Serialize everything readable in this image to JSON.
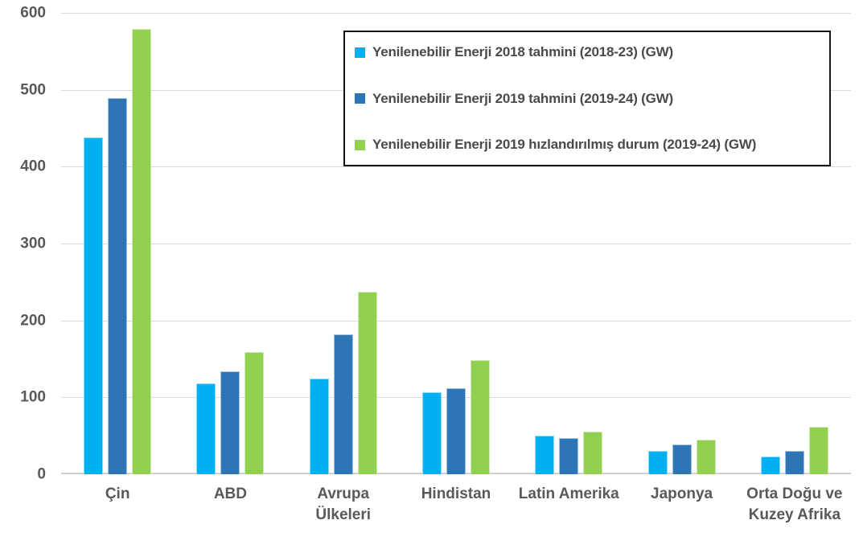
{
  "chart_data": {
    "type": "bar",
    "title": "",
    "xlabel": "",
    "ylabel": "",
    "ylim": [
      0,
      600
    ],
    "yticks": [
      0,
      100,
      200,
      300,
      400,
      500,
      600
    ],
    "grid": "horizontal",
    "legend_position": "inside-top-right-boxed",
    "categories": [
      "Çin",
      "ABD",
      "Avrupa\nÜlkeleri",
      "Hindistan",
      "Latin Amerika",
      "Japonya",
      "Orta Doğu ve\nKuzey Afrika"
    ],
    "series": [
      {
        "name": "Yenilenebilir Enerji 2018 tahmini (2018-23) (GW)",
        "color": "#00B0F0",
        "values": [
          438,
          118,
          124,
          107,
          50,
          30,
          23
        ]
      },
      {
        "name": "Yenilenebilir Enerji 2019 tahmini (2019-24) (GW)",
        "color": "#2E75B6",
        "values": [
          489,
          134,
          182,
          112,
          47,
          39,
          30
        ]
      },
      {
        "name": "Yenilenebilir Enerji 2019 hızlandırılmış durum (2019-24) (GW)",
        "color": "#92D050",
        "values": [
          579,
          159,
          237,
          149,
          55,
          45,
          62
        ]
      }
    ]
  },
  "colors": {
    "background": "#FFFFFF",
    "gridline": "#DBDBDB",
    "axis_line": "#D0D0D0",
    "axis_text": "#595959",
    "legend_text": "#4A4A4A",
    "legend_border": "#141414"
  }
}
